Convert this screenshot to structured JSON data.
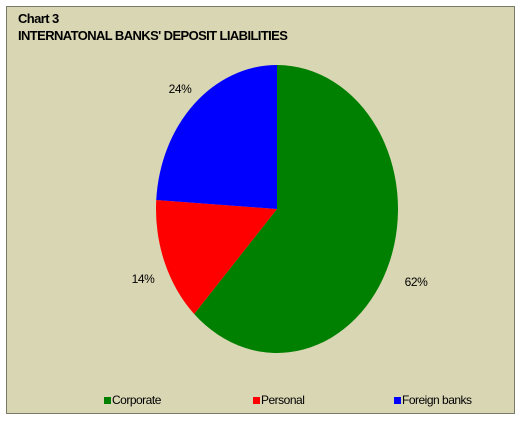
{
  "chart_label": "Chart 3",
  "chart_data": {
    "type": "pie",
    "title": "INTERNATONAL BANKS' DEPOSIT LIABILITIES",
    "slices": [
      {
        "name": "Corporate",
        "value": 62,
        "label": "62%",
        "color": "#008000"
      },
      {
        "name": "Personal",
        "value": 14,
        "label": "14%",
        "color": "#ff0000"
      },
      {
        "name": "Foreign banks",
        "value": 24,
        "label": "24%",
        "color": "#0000ff"
      }
    ],
    "legend_position": "bottom",
    "start_angle": "top, clockwise"
  }
}
